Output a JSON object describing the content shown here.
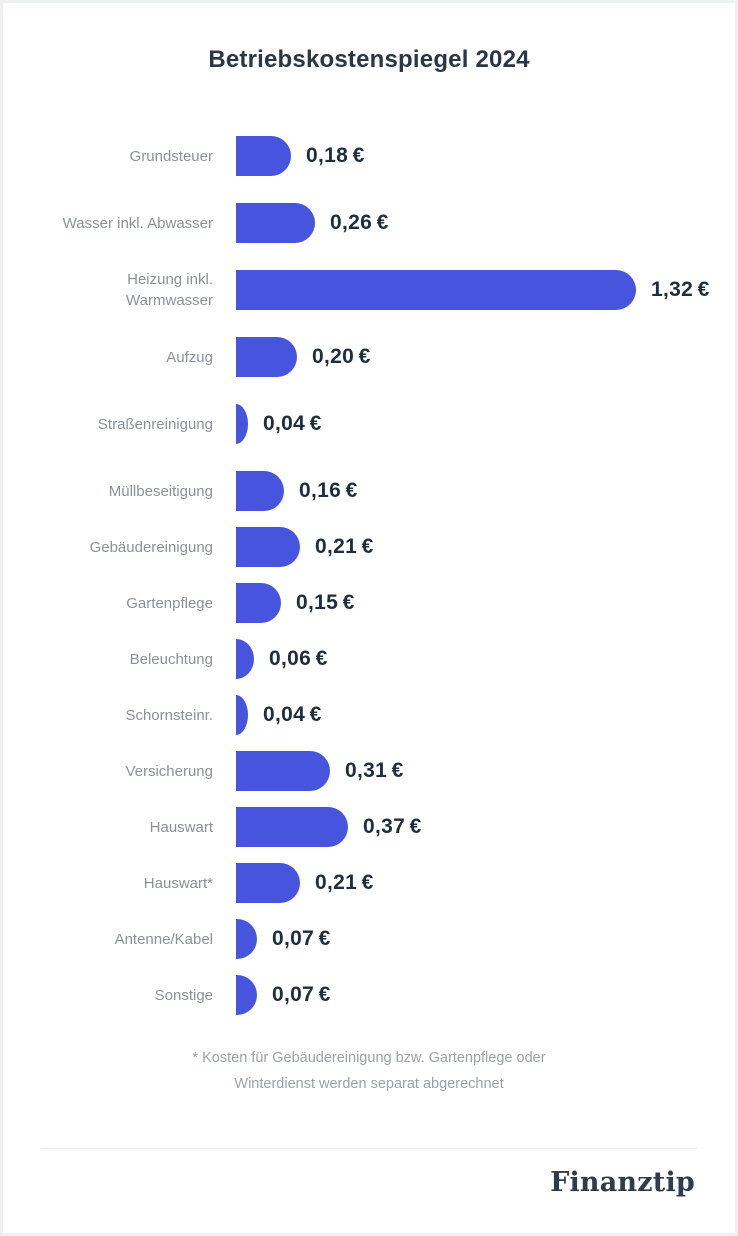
{
  "page": {
    "title": "Betriebskostenspiegel 2024",
    "footnote_line1": "* Kosten für Gebäudereinigung bzw. Gartenpflege oder",
    "footnote_line2": "Winterdienst werden separat abgerechnet",
    "brand": "Finanztip"
  },
  "colors": {
    "bar": "#4654DE",
    "title": "#2A3744",
    "value_text": "#1F2E3D",
    "label_text": "#8B9199",
    "footnote_text": "#9AA1A9",
    "divider": "#E9E9E9",
    "frame_border": "#EEF0F3",
    "background": "#FFFFFF"
  },
  "chart_data": {
    "type": "bar",
    "orientation": "horizontal",
    "title": "Betriebskostenspiegel 2024",
    "unit": "€",
    "xlim": [
      0,
      1.32
    ],
    "grid": false,
    "legend": false,
    "categories": [
      "Grundsteuer",
      "Wasser inkl. Abwasser",
      "Heizung inkl. Warmwasser",
      "Aufzug",
      "Straßenreinigung",
      "Müllbeseitigung",
      "Gebäudereinigung",
      "Gartenpflege",
      "Beleuchtung",
      "Schornsteinr.",
      "Versicherung",
      "Hauswart",
      "Hauswart*",
      "Antenne/Kabel",
      "Sonstige"
    ],
    "categories_display": [
      "Grundsteuer",
      "Wasser inkl. Abwasser",
      "Heizung inkl.\nWarmwasser",
      "Aufzug",
      "Straßenreinigung",
      "Müllbeseitigung",
      "Gebäudereinigung",
      "Gartenpflege",
      "Beleuchtung",
      "Schornsteinr.",
      "Versicherung",
      "Hauswart",
      "Hauswart*",
      "Antenne/Kabel",
      "Sonstige"
    ],
    "values": [
      0.18,
      0.26,
      1.32,
      0.2,
      0.04,
      0.16,
      0.21,
      0.15,
      0.06,
      0.04,
      0.31,
      0.37,
      0.21,
      0.07,
      0.07
    ],
    "value_labels": [
      "0,18 €",
      "0,26 €",
      "1,32 €",
      "0,20 €",
      "0,04 €",
      "0,16 €",
      "0,21 €",
      "0,15 €",
      "0,06 €",
      "0,04 €",
      "0,31 €",
      "0,37 €",
      "0,21 €",
      "0,07 €",
      "0,07 €"
    ]
  }
}
